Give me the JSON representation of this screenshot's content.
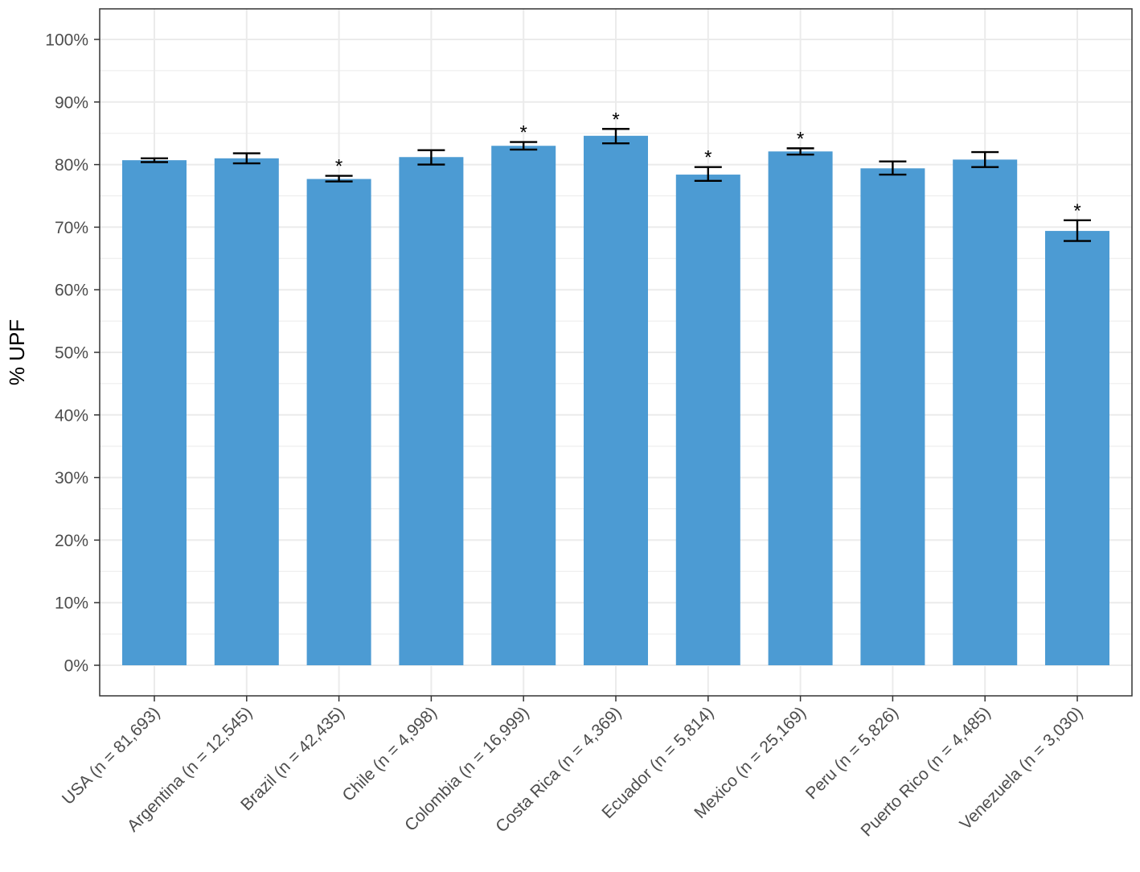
{
  "chart_data": {
    "type": "bar",
    "title": "",
    "xlabel": "",
    "ylabel": "% UPF",
    "ylim": [
      -5,
      105
    ],
    "y_ticks": [
      0,
      10,
      20,
      30,
      40,
      50,
      60,
      70,
      80,
      90,
      100
    ],
    "y_tick_labels": [
      "0%",
      "10%",
      "20%",
      "30%",
      "40%",
      "50%",
      "60%",
      "70%",
      "80%",
      "90%",
      "100%"
    ],
    "grid": true,
    "legend": "none",
    "categories": [
      "USA (n = 81,693)",
      "Argentina (n = 12,545)",
      "Brazil (n = 42,435)",
      "Chile (n = 4,998)",
      "Colombia (n = 16,999)",
      "Costa Rica (n = 4,369)",
      "Ecuador (n = 5,814)",
      "Mexico (n = 25,169)",
      "Peru (n = 5,826)",
      "Puerto Rico (n = 4,485)",
      "Venezuela (n = 3,030)"
    ],
    "values": [
      80.7,
      81.0,
      77.7,
      81.2,
      83.0,
      84.6,
      78.4,
      82.1,
      79.4,
      80.8,
      69.4
    ],
    "error_low": [
      80.4,
      80.2,
      77.3,
      80.0,
      82.4,
      83.4,
      77.4,
      81.6,
      78.4,
      79.6,
      67.8
    ],
    "error_high": [
      81.0,
      81.8,
      78.2,
      82.3,
      83.6,
      85.7,
      79.6,
      82.6,
      80.5,
      82.0,
      71.1
    ],
    "significance": [
      "",
      "",
      "*",
      "",
      "*",
      "*",
      "*",
      "*",
      "",
      "",
      "*"
    ],
    "colors": {
      "bar": "#4c9bd3",
      "grid": "#ebebeb",
      "panel_border": "#333333",
      "error_bar": "#000000"
    }
  }
}
